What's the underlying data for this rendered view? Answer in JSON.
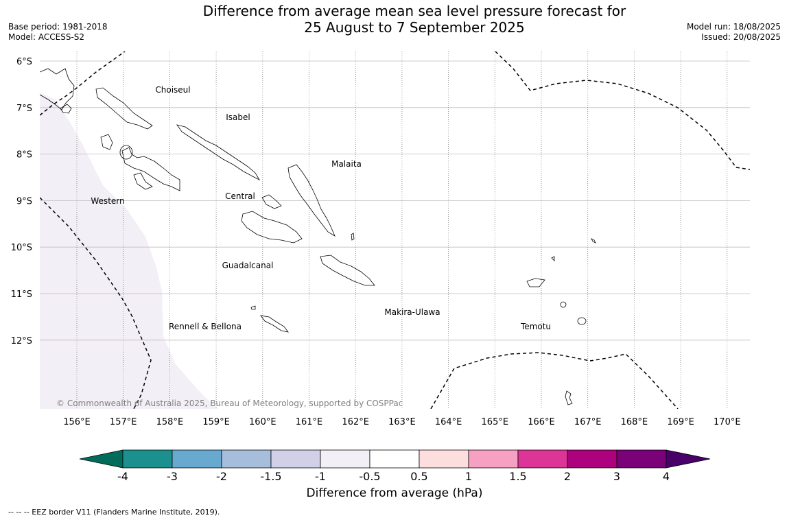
{
  "title": {
    "line1": "Difference from average mean sea level pressure forecast for",
    "line2": "25 August to 7 September 2025"
  },
  "meta_left": {
    "base_period": "Base period: 1981-2018",
    "model": "Model: ACCESS-S2"
  },
  "meta_right": {
    "model_run": "Model run: 18/08/2025",
    "issued": "Issued: 20/08/2025"
  },
  "map": {
    "lat_labels": [
      "6°S",
      "7°S",
      "8°S",
      "9°S",
      "10°S",
      "11°S",
      "12°S"
    ],
    "lon_labels": [
      "156°E",
      "157°E",
      "158°E",
      "159°E",
      "160°E",
      "161°E",
      "162°E",
      "163°E",
      "164°E",
      "165°E",
      "166°E",
      "167°E",
      "168°E",
      "169°E",
      "170°E"
    ],
    "province_labels": [
      "Choiseul",
      "Isabel",
      "Malaita",
      "Western",
      "Central",
      "Guadalcanal",
      "Makira-Ulawa",
      "Rennell & Bellona",
      "Temotu"
    ],
    "copyright": "© Commonwealth of Australia 2025, Bureau of Meteorology, supported by COSPPac",
    "shaded_anomaly_color": "#f3eff6",
    "eez_line_style": "dashed",
    "gridlines": "on"
  },
  "colorbar": {
    "tick_labels": [
      "-4",
      "-3",
      "-2",
      "-1.5",
      "-1",
      "-0.5",
      "0.5",
      "1",
      "1.5",
      "2",
      "3",
      "4"
    ],
    "colors": [
      "#1b908f",
      "#67a9cf",
      "#a6bddb",
      "#d0d1e6",
      "#f3eff6",
      "#ffffff",
      "#fddede",
      "#f7a1c2",
      "#dd3497",
      "#ae017e",
      "#7a0177"
    ],
    "under_color": "#016c59",
    "over_color": "#49006a",
    "label": "Difference from average (hPa)"
  },
  "footnote": "--  --  -- EEZ border V11 (Flanders Marine Institute, 2019)."
}
